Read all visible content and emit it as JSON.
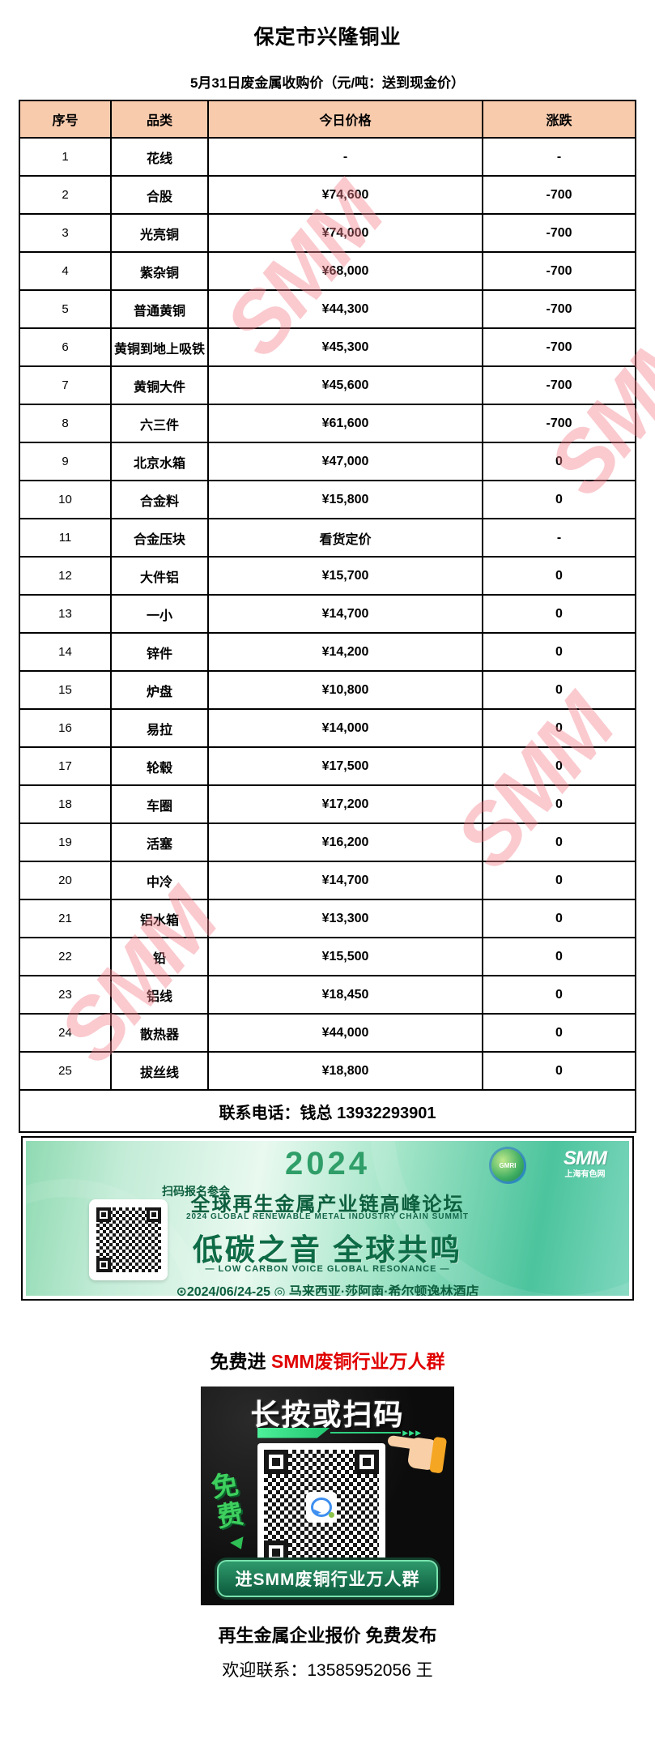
{
  "page": {
    "title": "保定市兴隆铜业",
    "subtitle": "5月31日废金属收购价（元/吨：送到现金价）"
  },
  "watermark": {
    "text": "SMM"
  },
  "table": {
    "headers": [
      "序号",
      "品类",
      "今日价格",
      "涨跌"
    ],
    "rows": [
      [
        "1",
        "花线",
        "-",
        "-"
      ],
      [
        "2",
        "合股",
        "¥74,600",
        "-700"
      ],
      [
        "3",
        "光亮铜",
        "¥74,000",
        "-700"
      ],
      [
        "4",
        "紫杂铜",
        "¥68,000",
        "-700"
      ],
      [
        "5",
        "普通黄铜",
        "¥44,300",
        "-700"
      ],
      [
        "6",
        "黄铜到地上吸铁",
        "¥45,300",
        "-700"
      ],
      [
        "7",
        "黄铜大件",
        "¥45,600",
        "-700"
      ],
      [
        "8",
        "六三件",
        "¥61,600",
        "-700"
      ],
      [
        "9",
        "北京水箱",
        "¥47,000",
        "0"
      ],
      [
        "10",
        "合金料",
        "¥15,800",
        "0"
      ],
      [
        "11",
        "合金压块",
        "看货定价",
        "-"
      ],
      [
        "12",
        "大件铝",
        "¥15,700",
        "0"
      ],
      [
        "13",
        "一小",
        "¥14,700",
        "0"
      ],
      [
        "14",
        "锌件",
        "¥14,200",
        "0"
      ],
      [
        "15",
        "炉盘",
        "¥10,800",
        "0"
      ],
      [
        "16",
        "易拉",
        "¥14,000",
        "0"
      ],
      [
        "17",
        "轮毂",
        "¥17,500",
        "0"
      ],
      [
        "18",
        "车圈",
        "¥17,200",
        "0"
      ],
      [
        "19",
        "活塞",
        "¥16,200",
        "0"
      ],
      [
        "20",
        "中冷",
        "¥14,700",
        "0"
      ],
      [
        "21",
        "铝水箱",
        "¥13,300",
        "0"
      ],
      [
        "22",
        "铅",
        "¥15,500",
        "0"
      ],
      [
        "23",
        "铝线",
        "¥18,450",
        "0"
      ],
      [
        "24",
        "散热器",
        "¥44,000",
        "0"
      ],
      [
        "25",
        "拔丝线",
        "¥18,800",
        "0"
      ]
    ],
    "footer_note": "联系电话：钱总 13932293901",
    "header_bg": "#F8CBAD"
  },
  "banner": {
    "year": "2024",
    "scan_label": "扫码报名参会",
    "title": "全球再生金属产业链高峰论坛",
    "subtitle_en": "2024 GLOBAL RENEWABLE METAL INDUSTRY CHAIN SUMMIT",
    "slogan": "低碳之音 全球共鸣",
    "slogan_en": "— LOW CARBON VOICE GLOBAL RESONANCE —",
    "date_line": "⊙2024/06/24-25 ◎ 马来西亚·莎阿南·希尔顿逸林酒店",
    "gmri_label": "GMRI",
    "smm_label": "SMM",
    "smm_sub_label": "上海有色网"
  },
  "promo": {
    "prefix": "免费进 ",
    "highlight": "SMM废铜行业万人群",
    "qr_title": "长按或扫码",
    "free_label": "免费",
    "arrows": "▶▶▶",
    "button_label": "进SMM废铜行业万人群"
  },
  "footer": {
    "line1": "再生金属企业报价 免费发布",
    "line2": "欢迎联系：13585952056 王"
  }
}
